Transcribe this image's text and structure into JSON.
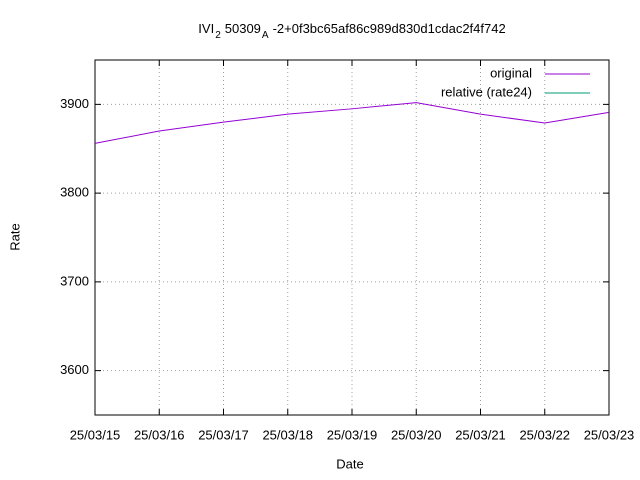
{
  "chart_data": {
    "type": "line",
    "title": [
      "IVI",
      "2",
      "50309",
      "A",
      "-2+0f3bc65af86c989d830d1cdac2f4f742"
    ],
    "xlabel": "Date",
    "ylabel": "Rate",
    "categories": [
      "25/03/15",
      "25/03/16",
      "25/03/17",
      "25/03/18",
      "25/03/19",
      "25/03/20",
      "25/03/21",
      "25/03/22",
      "25/03/23"
    ],
    "series": [
      {
        "name": "original",
        "color": "#9400d3",
        "values": [
          3856,
          3870,
          3880,
          3889,
          3895,
          3902,
          3889,
          3879,
          3891
        ]
      },
      {
        "name": "relative (rate24)",
        "color": "#009e73",
        "values": [
          null,
          null,
          null,
          null,
          null,
          null,
          null,
          null,
          null
        ]
      }
    ],
    "ylim": [
      3550,
      3950
    ],
    "yticks": [
      3600,
      3700,
      3800,
      3900
    ],
    "grid": true,
    "legend": "top-right"
  }
}
